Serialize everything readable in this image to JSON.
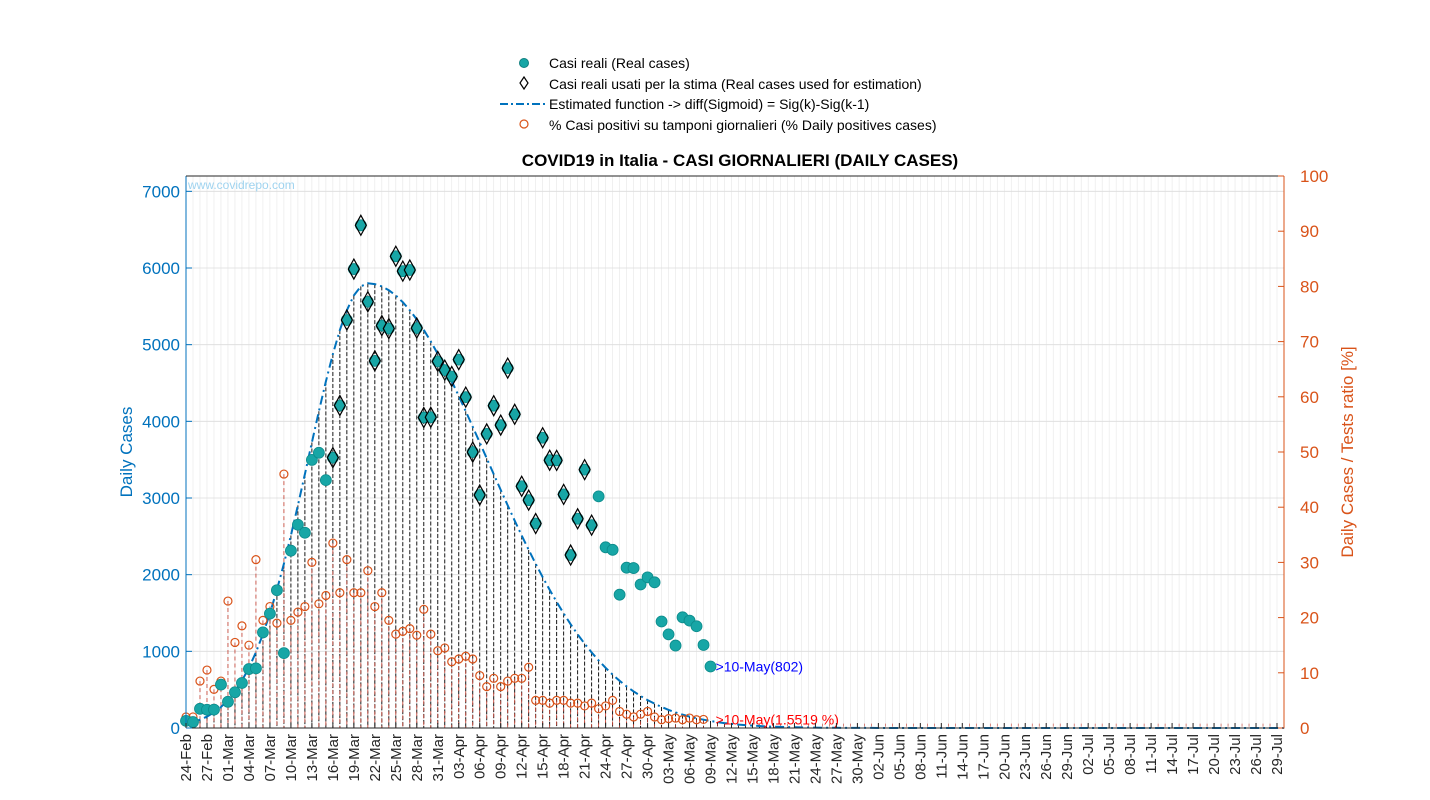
{
  "chart_data": {
    "type": "scatter",
    "title": "COVID19 in Italia - CASI GIORNALIERI (DAILY CASES)",
    "watermark": "www.covidrepo.com",
    "ylabel_left": "Daily Cases",
    "ylabel_right": "Daily Cases / Tests ratio [%]",
    "ylim_left": [
      0,
      7200
    ],
    "ylim_right": [
      0,
      100
    ],
    "yticks_left": [
      0,
      1000,
      2000,
      3000,
      4000,
      5000,
      6000,
      7000
    ],
    "yticks_right": [
      0,
      10,
      20,
      30,
      40,
      50,
      60,
      70,
      80,
      90,
      100
    ],
    "grid": true,
    "legend_position": "top-center",
    "colors": {
      "real": "#17a6a6",
      "estimated": "#0072BD",
      "positives": "#D95319",
      "axis_left": "#0072BD",
      "axis_right": "#D95319"
    },
    "legend": [
      {
        "label": "Casi reali (Real cases)",
        "marker": "filled-circle"
      },
      {
        "label": "Casi reali usati per la stima (Real cases used for estimation)",
        "marker": "diamond"
      },
      {
        "label": "Estimated function -> diff(Sigmoid) = Sig(k)-Sig(k-1)",
        "marker": "dash-dot-line"
      },
      {
        "label": "% Casi positivi su tamponi giornalieri (% Daily positives cases)",
        "marker": "open-circle"
      }
    ],
    "xticks": [
      "24-Feb",
      "27-Feb",
      "01-Mar",
      "04-Mar",
      "07-Mar",
      "10-Mar",
      "13-Mar",
      "16-Mar",
      "19-Mar",
      "22-Mar",
      "25-Mar",
      "28-Mar",
      "31-Mar",
      "03-Apr",
      "06-Apr",
      "09-Apr",
      "12-Apr",
      "15-Apr",
      "18-Apr",
      "21-Apr",
      "24-Apr",
      "27-Apr",
      "30-Apr",
      "03-May",
      "06-May",
      "09-May",
      "12-May",
      "15-May",
      "18-May",
      "21-May",
      "24-May",
      "27-May",
      "30-May",
      "02-Jun",
      "05-Jun",
      "08-Jun",
      "11-Jun",
      "14-Jun",
      "17-Jun",
      "20-Jun",
      "23-Jun",
      "26-Jun",
      "29-Jun",
      "02-Jul",
      "05-Jul",
      "08-Jul",
      "11-Jul",
      "14-Jul",
      "17-Jul",
      "20-Jul",
      "23-Jul",
      "26-Jul",
      "29-Jul"
    ],
    "x_start": "24-Feb",
    "x_end": "30-Jul",
    "real_cases": [
      93,
      78,
      250,
      238,
      240,
      566,
      342,
      466,
      587,
      769,
      778,
      1247,
      1492,
      1797,
      977,
      2313,
      2651,
      2547,
      3497,
      3590,
      3233,
      3526,
      4207,
      5322,
      5986,
      6557,
      5560,
      4789,
      5249,
      5210,
      6153,
      5959,
      5974,
      5217,
      4050,
      4053,
      4782,
      4668,
      4585,
      4805,
      4316,
      3599,
      3039,
      3836,
      4204,
      3951,
      4694,
      4092,
      3153,
      2972,
      2667,
      3786,
      3493,
      3491,
      3047,
      2256,
      2729,
      3370,
      2646,
      3021,
      2357,
      2324,
      1739,
      2091,
      2086,
      1872,
      1965,
      1900,
      1389,
      1221,
      1075,
      1444,
      1401,
      1327,
      1083,
      802
    ],
    "estimation_start_index": 21,
    "estimation_end_index": 58,
    "annotations": [
      {
        "text": ">10-May(802)",
        "color": "blue"
      },
      {
        "text": ">10-May(1.5519 %)",
        "color": "red"
      }
    ],
    "positives_pct": [
      2,
      2,
      8.5,
      10.5,
      7,
      8.5,
      23,
      15.5,
      18.5,
      15,
      30.5,
      19.5,
      22,
      19,
      46,
      19.5,
      21,
      22,
      30,
      22.5,
      24,
      33.5,
      24.5,
      30.5,
      24.5,
      24.5,
      28.5,
      22,
      24.5,
      19.5,
      17,
      17.5,
      18,
      16.8,
      21.5,
      17,
      14,
      14.5,
      12,
      12.5,
      13,
      12.5,
      9.5,
      7.5,
      9,
      7.5,
      8.5,
      9,
      9,
      11,
      5,
      5,
      4.5,
      5,
      5,
      4.5,
      4.5,
      4,
      4.5,
      3.5,
      4,
      5,
      3,
      2.5,
      2,
      2.5,
      3,
      2,
      1.5,
      1.7,
      1.8,
      1.5,
      1.8,
      1.5,
      1.5519
    ],
    "estimated": {
      "peak_value": 5800,
      "peak_date": "22-Mar"
    }
  }
}
